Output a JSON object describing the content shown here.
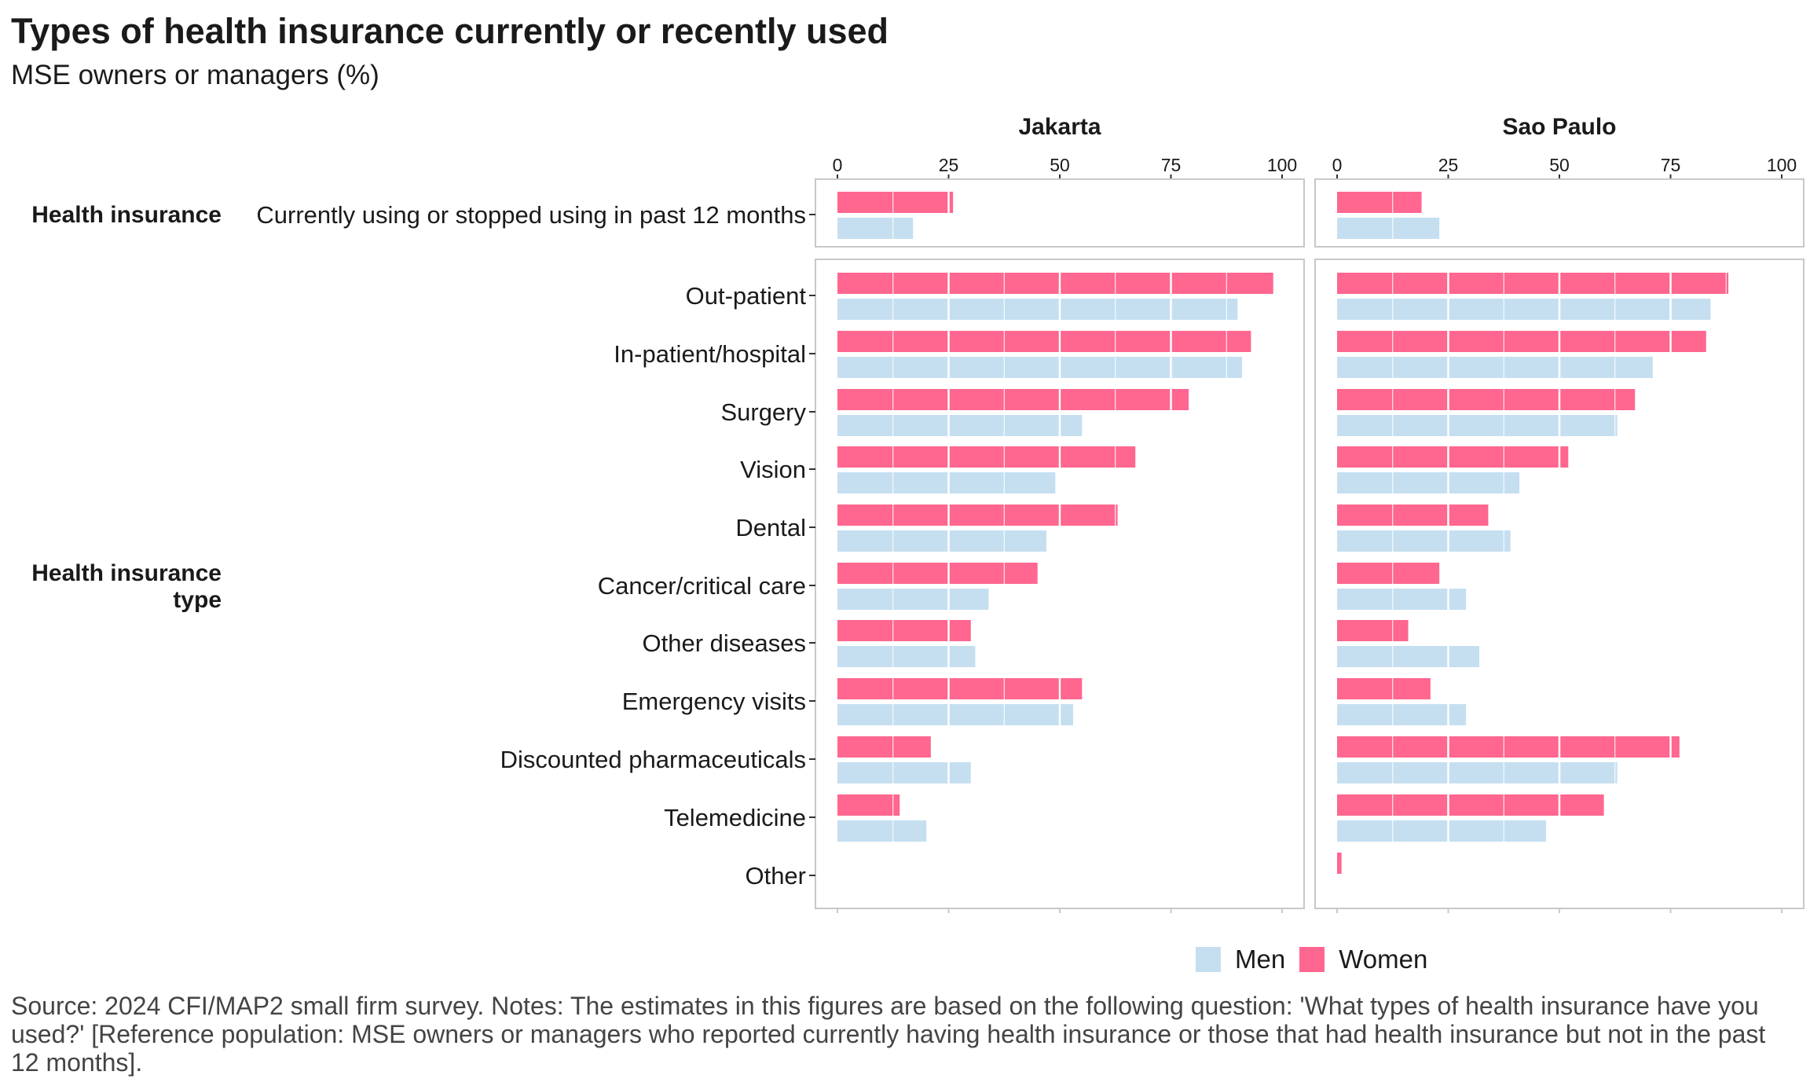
{
  "chart_data": {
    "type": "bar",
    "title": "Types of health insurance currently or recently used",
    "subtitle": "MSE owners or managers (%)",
    "xlim": [
      0,
      100
    ],
    "ticks": [
      0,
      25,
      50,
      75,
      100
    ],
    "tick_labels": [
      "0",
      "25",
      "50",
      "75",
      "100"
    ],
    "panels": [
      "Jakarta",
      "Sao Paulo"
    ],
    "groups": [
      {
        "label": "Health insurance",
        "categories": [
          "Currently using or stopped using in past 12 months"
        ]
      },
      {
        "label": "Health insurance type",
        "categories": [
          "Out-patient",
          "In-patient/hospital",
          "Surgery",
          "Vision",
          "Dental",
          "Cancer/critical care",
          "Other diseases",
          "Emergency visits",
          "Discounted pharmaceuticals",
          "Telemedicine",
          "Other"
        ]
      }
    ],
    "series": [
      {
        "name": "Women",
        "color": "#ff6690",
        "values": {
          "Jakarta": [
            26,
            98,
            93,
            79,
            67,
            63,
            45,
            30,
            55,
            21,
            14,
            0
          ],
          "Sao Paulo": [
            19,
            88,
            83,
            67,
            52,
            34,
            23,
            16,
            21,
            77,
            60,
            1
          ]
        }
      },
      {
        "name": "Men",
        "color": "#c5dff0",
        "values": {
          "Jakarta": [
            17,
            90,
            91,
            55,
            49,
            47,
            34,
            31,
            53,
            30,
            20,
            0
          ],
          "Sao Paulo": [
            23,
            84,
            71,
            63,
            41,
            39,
            29,
            32,
            29,
            63,
            47,
            0
          ]
        }
      }
    ],
    "legend": {
      "position": "bottom",
      "entries": [
        "Men",
        "Women"
      ]
    },
    "grid": true
  },
  "source": "Source: 2024 CFI/MAP2 small firm survey. Notes: The estimates in this figures are based on the following question: 'What types of health insurance have you used?' [Reference population: MSE owners or managers who reported currently having health insurance or those that had health insurance but not in the past 12 months]."
}
